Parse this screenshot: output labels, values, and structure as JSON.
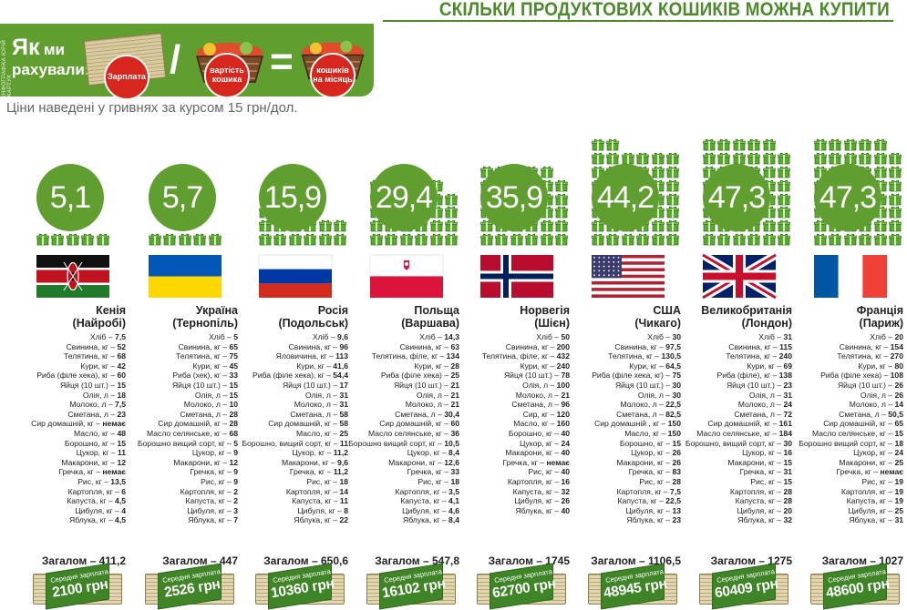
{
  "title": "СКІЛЬКИ ПРОДУКТОВИХ КОШИКІВ МОЖНА КУПИТИ",
  "credit": "ІНФОГРАФІКА ЮРІЙ КАРТУК",
  "formula": {
    "heading_big": "Як",
    "heading_small": "ми",
    "heading_line2": "рахували:",
    "salary": "Зарплата",
    "basket_cost": "вартість кошика",
    "baskets_month": "кошиків на місяць",
    "divide": "/",
    "equals": "="
  },
  "subtitle": "Ціни наведені у гривнях за курсом 15 грн/дол.",
  "salary_label": "Середня зарплата",
  "total_label": "Загалом",
  "colors": {
    "green": "#5f9e2f",
    "red": "#d7261e",
    "text": "#222222"
  },
  "chart_data": {
    "type": "bar",
    "title": "СКІЛЬКИ ПРОДУКТОВИХ КОШИКІВ МОЖНА КУПИТИ",
    "unit": "кошиків на місяць",
    "categories": [
      "Кенія (Найробі)",
      "Україна (Тернопіль)",
      "Росія (Подольськ)",
      "Польща (Варшава)",
      "Норвегія (Шієн)",
      "США (Чикаго)",
      "Великобританія (Лондон)",
      "Франція (Париж)"
    ],
    "values": [
      5.1,
      5.7,
      15.9,
      29.4,
      35.9,
      44.2,
      47.3,
      47.3
    ],
    "baskets_shown": [
      5,
      5,
      15,
      29,
      35,
      44,
      47,
      47
    ],
    "series_totals": [
      411.2,
      447,
      650.6,
      547.8,
      1745,
      1106.5,
      1275,
      1027
    ],
    "series_salary": [
      "2100 грн",
      "2526 грн",
      "10360 грн",
      "16102 грн",
      "62700 грн",
      "48945 грн",
      "60409 грн",
      "48600 грн"
    ]
  },
  "countries": [
    {
      "value": "5,1",
      "name": "Кенія",
      "city": "(Найробі)",
      "flag": "kenya",
      "total": "Загалом – 411,2",
      "salary": "2100 грн",
      "items": [
        "Хліб – 7,5",
        "Свинина, кг – 52",
        "Телятина, кг – 68",
        "Кури, кг – 42",
        "Риба (філе хека), кг – 60",
        "Яйця (10 шт.) – 15",
        "Олія, л – 18",
        "Молоко, л – 7,5",
        "Сметана, л – 23",
        "Сир домашній, кг – немає",
        "Масло, кг – 48",
        "Борошно, кг – 15",
        "Цукор, кг – 11",
        "Макарони, кг – 12",
        "Гречка, кг – немає",
        "Рис, кг – 13,5",
        "Картопля, кг – 6",
        "Капуста, кг – 4,5",
        "Цибуля, кг – 4",
        "Яблука, кг – 4,5"
      ]
    },
    {
      "value": "5,7",
      "name": "Україна",
      "city": "(Тернопіль)",
      "flag": "ukraine",
      "total": "Загалом – 447",
      "salary": "2526 грн",
      "items": [
        "Хліб – 5",
        "Свинина, кг – 65",
        "Телятина, кг – 75",
        "Кури, кг – 45",
        "Риба (хек), кг – 33",
        "Яйця (10 шт.) – 15",
        "Олія, л – 15",
        "Молоко, л – 10",
        "Сметана, л – 28",
        "Сир домашній, кг – 28",
        "Масло селянське, кг – 68",
        "Борошно вищий сорт, кг – 5",
        "Цукор, кг – 9",
        "Макарони, кг – 12",
        "Гречка, кг – 9",
        "Рис, кг – 9",
        "Картопля, кг – 2",
        "Капуста, кг – 2",
        "Цибуля, кг – 3",
        "Яблука, кг – 7"
      ]
    },
    {
      "value": "15,9",
      "name": "Росія",
      "city": "(Подольськ)",
      "flag": "russia",
      "total": "Загалом – 650,6",
      "salary": "10360 грн",
      "items": [
        "Хліб – 9,6",
        "Свинина, кг – 96",
        "Яловичина, кг – 113",
        "Кури, кг – 41,6",
        "Риба (філе хека), кг – 54,4",
        "Яйця (10 шт.) – 17",
        "Олія, л – 31",
        "Молоко, л – 31",
        "Сметана, л – 58",
        "Сир домашній, кг – 58",
        "Масло, кг – 25",
        "Борошно, вищий сорт, кг – 11",
        "Цукор, кг – 11,2",
        "Макарони, кг – 9,6",
        "Гречка, кг – 11,2",
        "Рис, кг – 18",
        "Картопля, кг – 14",
        "Капуста, кг – 11",
        "Цибуля, кг – 8",
        "Яблука, кг – 22"
      ]
    },
    {
      "value": "29,4",
      "name": "Польща",
      "city": "(Варшава)",
      "flag": "poland",
      "total": "Загалом – 547,8",
      "salary": "16102 грн",
      "items": [
        "Хліб – 14,3",
        "Свинина, кг – 63",
        "Телятина, філе, кг – 134",
        "Кури, кг – 28",
        "Риба (філе хека) – 25",
        "Яйця (10 шт.) – 21",
        "Олія, л – 21",
        "Молоко, л – 21",
        "Сметана, л – 30,4",
        "Сир домашній, кг – 60",
        "Масло селянське, кг – 36",
        "Борошно вищий сорт, кг – 10,5",
        "Цукор, кг – 8,4",
        "Макарони, кг – 12,6",
        "Гречка, кг – 33",
        "Рис, кг – 18",
        "Картопля, кг – 3,5",
        "Капуста, кг – 4,1",
        "Цибуля, кг – 4,6",
        "Яблука, кг – 8,4"
      ]
    },
    {
      "value": "35,9",
      "name": "Норвегія",
      "city": "(Шієн)",
      "flag": "norway",
      "total": "Загалом – 1745",
      "salary": "62700 грн",
      "items": [
        "Хліб – 50",
        "Свинина, кг – 200",
        "Телятина, філе, кг – 432",
        "Кури, кг – 240",
        "Яйця (10 шт.) – 78",
        "Олія, л – 100",
        "Молоко, л – 21",
        "Сметана, л – 96",
        "Сир, кг – 120",
        "Масло, кг – 160",
        "Борошно, кг – 40",
        "Цукор, кг – 24",
        "Макарони, кг – 40",
        "Гречка, кг – немає",
        "Рис, кг – 40",
        "Картопля, кг – 16",
        "Капуста, кг – 32",
        "Цибуля, кг – 26",
        "Яблука, кг – 40"
      ]
    },
    {
      "value": "44,2",
      "name": "США",
      "city": "(Чикаго)",
      "flag": "usa",
      "total": "Загалом – 1106,5",
      "salary": "48945 грн",
      "items": [
        "Хліб – 30",
        "Свинина, кг – 97,5",
        "Телятина, кг – 130,5",
        "Кури, кг – 64,5",
        "Риба (філе хека, кг) – 75",
        "Яйця (10 шт.) – 30",
        "Олія, л – 30",
        "Молоко, л – 22,5",
        "Сметана, л – 82,5",
        "Сир домашній , кг – 150",
        "Масло, кг – 150",
        "Борошно, кг – 15",
        "Цукор, кг – 26",
        "Макарони, кг – 26",
        "Гречка, кг – 83",
        "Рис, кг – 28",
        "Картопля, кг – 7,5",
        "Капуста, кг – 22,5",
        "Цибуля, кг – 13",
        "Яблука, кг – 23"
      ]
    },
    {
      "value": "47,3",
      "name": "Великобританія",
      "city": "(Лондон)",
      "flag": "uk",
      "total": "Загалом – 1275",
      "salary": "60409 грн",
      "items": [
        "Хліб – 31",
        "Свинина, кг – 115",
        "Телятина, кг – 240",
        "Кури, кг – 69",
        "Риба (філе), кг – 138",
        "Яйця (10 шт.) – 23",
        "Олія, л – 31",
        "Молоко, л – 24",
        "Сметана, л – 72",
        "Сир домашній, кг – 161",
        "Масло селянське, кг – 184",
        "Борошно, вищий сорт, кг – 30",
        "Цукор, кг – 16",
        "Макарони, кг – 15",
        "Гречка, кг – 31",
        "Рис, кг – 15",
        "Картопля, кг – 28",
        "Капуста, кг – 28",
        "Цибуля, кг – 20",
        "Яблука, кг – 32"
      ]
    },
    {
      "value": "47,3",
      "name": "Франція",
      "city": "(Париж)",
      "flag": "france",
      "total": "Загалом – 1027",
      "salary": "48600 грн",
      "items": [
        "Хліб – 20",
        "Свинина, кг – 154",
        "Телятина, кг – 270",
        "Кури, кг – 80",
        "Риба (філе хека) – 108",
        "Яйця (10 шт.) – 26",
        "Олія, л – 26",
        "Молоко, л – 14",
        "Сметана, л – 50,5",
        "Сир домашній, кг – 65",
        "Масло селянське, кг – 15",
        "Борошно вищий сорт, кг – 18",
        "Цукор, кг – 24",
        "Макарони, кг – 25",
        "Гречка, кг – немає",
        "Рис, кг – 19",
        "Картопля, кг – 19",
        "Капуста, кг – 19",
        "Цибуля, кг – 25",
        "Яблука, кг – 31"
      ]
    }
  ]
}
